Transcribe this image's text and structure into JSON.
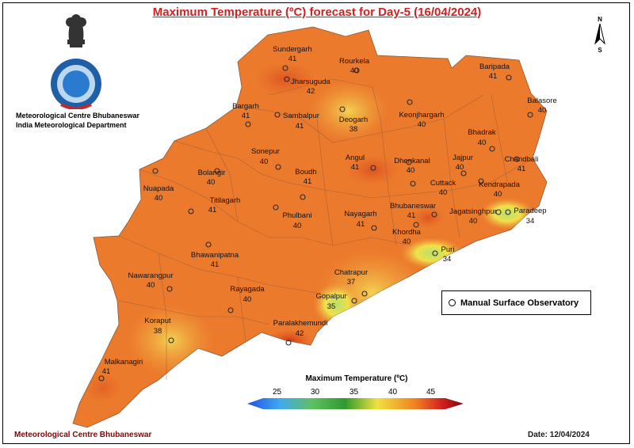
{
  "title": "Maximum Temperature (ºC) forecast for Day-5 (16/04/2024)",
  "org": {
    "line1": "Meteorological Centre Bhubaneswar",
    "line2": "India Meteorological Department"
  },
  "north": {
    "n": "N",
    "s": "S"
  },
  "legend": {
    "label": "Manual Surface Observatory"
  },
  "colorbar": {
    "title": "Maximum Temperature (ºC)",
    "ticks": [
      "25",
      "30",
      "35",
      "40",
      "45"
    ]
  },
  "footer": {
    "left": "Meteorological Centre Bhubaneswar",
    "right": "Date: 12/04/2024"
  },
  "stations": [
    {
      "name": "Sundergarh",
      "value": "41"
    },
    {
      "name": "Rourkela",
      "value": "40"
    },
    {
      "name": "Jharsuguda",
      "value": "42"
    },
    {
      "name": "Baripada",
      "value": "41"
    },
    {
      "name": "Bargarh",
      "value": "41"
    },
    {
      "name": "Sambalpur",
      "value": "41"
    },
    {
      "name": "Deogarh",
      "value": "38"
    },
    {
      "name": "Keonjhargarh",
      "value": "40"
    },
    {
      "name": "Balasore",
      "value": "40"
    },
    {
      "name": "Bhadrak",
      "value": "40"
    },
    {
      "name": "Sonepur",
      "value": "40"
    },
    {
      "name": "Angul",
      "value": "41"
    },
    {
      "name": "Dhenkanal",
      "value": "40"
    },
    {
      "name": "Jajpur",
      "value": "40"
    },
    {
      "name": "Chandbali",
      "value": "41"
    },
    {
      "name": "Bolangir",
      "value": "40"
    },
    {
      "name": "Boudh",
      "value": "41"
    },
    {
      "name": "Cuttack",
      "value": "40"
    },
    {
      "name": "Kendrapada",
      "value": "40"
    },
    {
      "name": "Nuapada",
      "value": "40"
    },
    {
      "name": "Titilagarh",
      "value": "41"
    },
    {
      "name": "Bhubaneswar",
      "value": "41"
    },
    {
      "name": "Jagatsinghpur",
      "value": "40"
    },
    {
      "name": "Paradeep",
      "value": "34"
    },
    {
      "name": "Phulbani",
      "value": "40"
    },
    {
      "name": "Nayagarh",
      "value": "41"
    },
    {
      "name": "Khordha",
      "value": "40"
    },
    {
      "name": "Bhawanipatna",
      "value": "41"
    },
    {
      "name": "Puri",
      "value": "34"
    },
    {
      "name": "Chatrapur",
      "value": "37"
    },
    {
      "name": "Nawarangpur",
      "value": "40"
    },
    {
      "name": "Rayagada",
      "value": "40"
    },
    {
      "name": "Gopalpur",
      "value": "35"
    },
    {
      "name": "Koraput",
      "value": "38"
    },
    {
      "name": "Paralakhemundi",
      "value": "42"
    },
    {
      "name": "Malkanagiri",
      "value": "41"
    }
  ]
}
